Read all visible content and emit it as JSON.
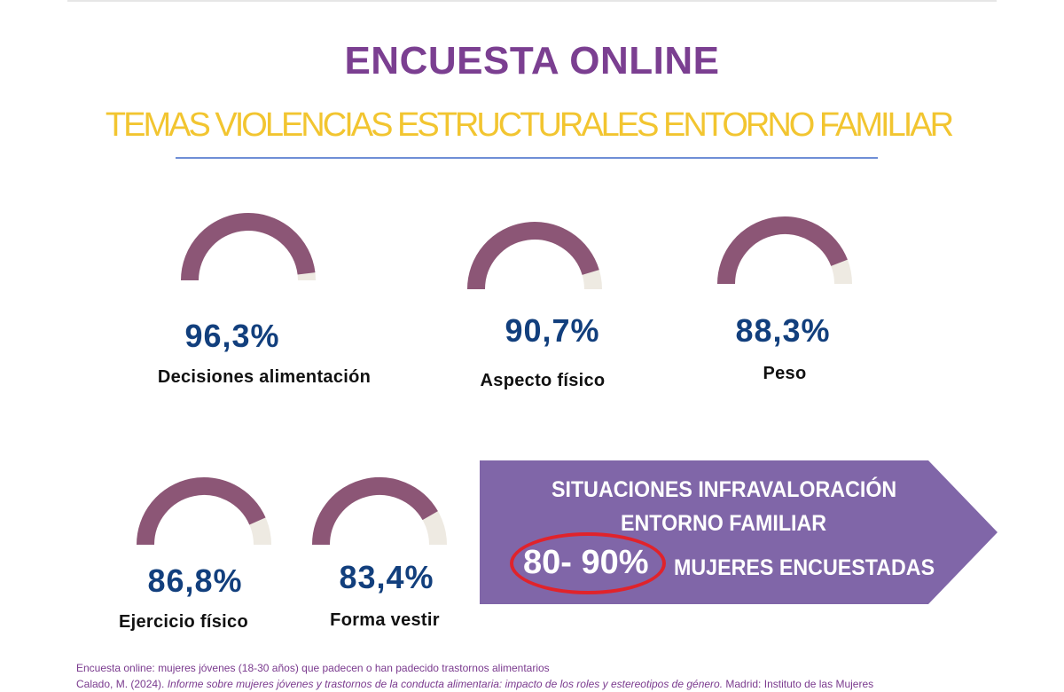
{
  "header": {
    "title": "ENCUESTA ONLINE",
    "subtitle": "TEMAS VIOLENCIAS ESTRUCTURALES ENTORNO FAMILIAR"
  },
  "colors": {
    "title": "#7b3f91",
    "subtitle": "#f2c530",
    "gauge_fill": "#8c5676",
    "gauge_track": "#eeeae2",
    "value_text": "#123f7d",
    "banner": "#8066a8",
    "highlight_ring": "#e0232b"
  },
  "chart_data": {
    "type": "gauge",
    "max": 100,
    "items": [
      {
        "category": "Decisiones alimentación",
        "value": 96.3,
        "label": "96,3%"
      },
      {
        "category": "Aspecto físico",
        "value": 90.7,
        "label": "90,7%"
      },
      {
        "category": "Peso",
        "value": 88.3,
        "label": "88,3%"
      },
      {
        "category": "Ejercicio físico",
        "value": 86.8,
        "label": "86,8%"
      },
      {
        "category": "Forma vestir",
        "value": 83.4,
        "label": "83,4%"
      }
    ]
  },
  "banner": {
    "line1": "SITUACIONES INFRAVALORACIÓN",
    "line2": "ENTORNO FAMILIAR",
    "range": "80- 90%",
    "line3": "MUJERES ENCUESTADAS"
  },
  "footer": {
    "note": "Encuesta online: mujeres jóvenes (18-30 años) que padecen o han padecido trastornos alimentarios",
    "source_prefix": "Calado, M. (2024). ",
    "source_title": "Informe sobre mujeres jóvenes y trastornos de la conducta alimentaria: impacto de los roles y estereotipos de género.",
    "source_suffix": " Madrid: Instituto de las Mujeres"
  }
}
